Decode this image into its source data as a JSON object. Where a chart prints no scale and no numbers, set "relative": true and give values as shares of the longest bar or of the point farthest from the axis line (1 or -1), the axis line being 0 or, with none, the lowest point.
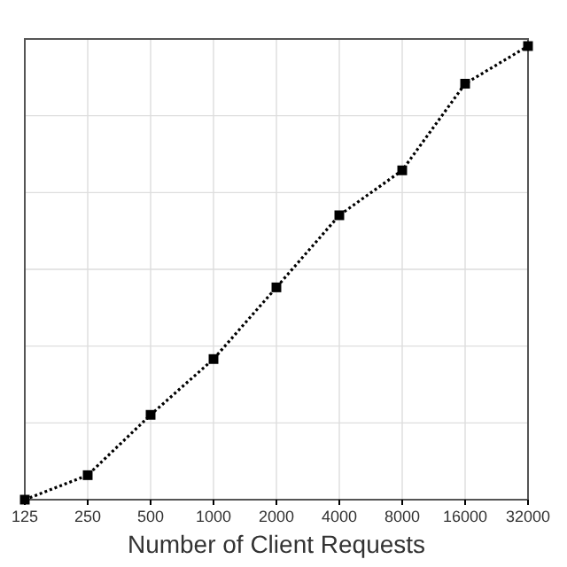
{
  "chart_data": {
    "type": "line",
    "xlabel": "Number of Client Requests",
    "categories": [
      "125",
      "250",
      "500",
      "1000",
      "2000",
      "4000",
      "8000",
      "16000",
      "32000"
    ],
    "relative": true,
    "series": [
      {
        "color": "#000000",
        "values": [
          0,
          0.054,
          0.187,
          0.31,
          0.468,
          0.627,
          0.726,
          0.917,
          1
        ]
      }
    ],
    "marker": "square",
    "line_style": "dotted",
    "grid": true
  }
}
